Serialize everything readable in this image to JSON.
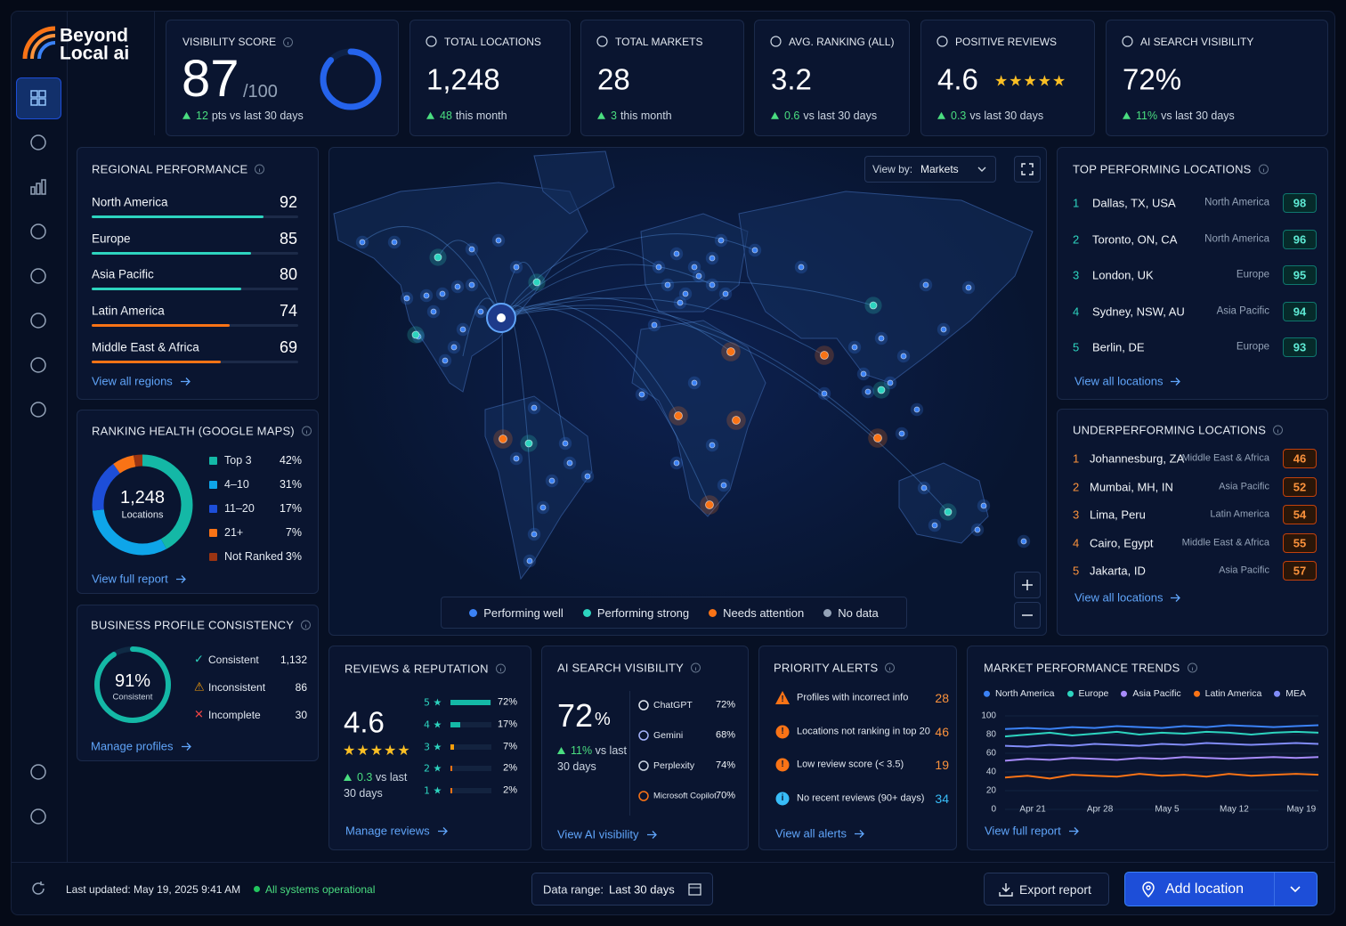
{
  "brand": {
    "line1": "Beyond",
    "line2": "Local ai"
  },
  "kpis": [
    {
      "title": "VISIBILITY SCORE",
      "value": 87,
      "unit": "/100",
      "delta": "12",
      "note": "pts vs last 30 days"
    },
    {
      "title": "TOTAL LOCATIONS",
      "value": "1,248",
      "delta": "48",
      "note": "this month"
    },
    {
      "title": "TOTAL MARKETS",
      "value": "28",
      "delta": "3",
      "note": "this month"
    },
    {
      "title": "AVG. RANKING (ALL)",
      "value": "3.2",
      "delta": "0.6",
      "note": "vs last 30 days"
    },
    {
      "title": "POSITIVE REVIEWS",
      "value": "4.6",
      "stars": "★★★★★",
      "delta": "0.3",
      "note": "vs last 30 days"
    },
    {
      "title": "AI SEARCH VISIBILITY",
      "value": "72%",
      "delta": "11%",
      "note": "vs last 30 days"
    }
  ],
  "regional": {
    "title": "REGIONAL PERFORMANCE",
    "items": [
      {
        "name": "North America",
        "score": 92,
        "color": "#2dd4bf"
      },
      {
        "name": "Europe",
        "score": 85,
        "color": "#2dd4bf"
      },
      {
        "name": "Asia Pacific",
        "score": 80,
        "color": "#2dd4bf"
      },
      {
        "name": "Latin America",
        "score": 74,
        "color": "#f97316"
      },
      {
        "name": "Middle East & Africa",
        "score": 69,
        "color": "#f97316"
      }
    ],
    "link": "View all regions"
  },
  "ranking": {
    "title": "RANKING HEALTH (GOOGLE MAPS)",
    "total": "1,248",
    "total_label": "Locations",
    "items": [
      {
        "label": "Top 3",
        "value": 42,
        "value_label": "42%",
        "color": "#14b8a6"
      },
      {
        "label": "4–10",
        "value": 31,
        "value_label": "31%",
        "color": "#0ea5e9"
      },
      {
        "label": "11–20",
        "value": 17,
        "value_label": "17%",
        "color": "#1d4ed8"
      },
      {
        "label": "21+",
        "value": 7,
        "value_label": "7%",
        "color": "#f97316"
      },
      {
        "label": "Not Ranked",
        "value": 3,
        "value_label": "3%",
        "color": "#9a3412"
      }
    ],
    "link": "View full report"
  },
  "consistency": {
    "title": "BUSINESS PROFILE CONSISTENCY",
    "score": 91,
    "score_label": "91%",
    "score_caption": "Consistent",
    "items": [
      {
        "icon": "✓",
        "label": "Consistent",
        "count": "1,132",
        "color": "#2dd4bf"
      },
      {
        "icon": "⚠",
        "label": "Inconsistent",
        "count": "86",
        "color": "#f59e0b"
      },
      {
        "icon": "✕",
        "label": "Incomplete",
        "count": "30",
        "color": "#ef4444"
      }
    ],
    "link": "Manage profiles"
  },
  "map": {
    "view_by_label": "View by:",
    "view_by": "Markets",
    "legend": [
      {
        "label": "Performing well",
        "color": "#3b82f6"
      },
      {
        "label": "Performing strong",
        "color": "#2dd4bf"
      },
      {
        "label": "Needs attention",
        "color": "#f97316"
      },
      {
        "label": "No data",
        "color": "#94a3b8"
      }
    ]
  },
  "top": {
    "title": "TOP PERFORMING LOCATIONS",
    "rows": [
      {
        "rank": "1",
        "name": "Dallas, TX, USA",
        "region": "North America",
        "score": "98"
      },
      {
        "rank": "2",
        "name": "Toronto, ON, CA",
        "region": "North America",
        "score": "96"
      },
      {
        "rank": "3",
        "name": "London, UK",
        "region": "Europe",
        "score": "95"
      },
      {
        "rank": "4",
        "name": "Sydney, NSW, AU",
        "region": "Asia Pacific",
        "score": "94"
      },
      {
        "rank": "5",
        "name": "Berlin, DE",
        "region": "Europe",
        "score": "93"
      }
    ],
    "link": "View all locations"
  },
  "under": {
    "title": "UNDERPERFORMING LOCATIONS",
    "rows": [
      {
        "rank": "1",
        "name": "Johannesburg, ZA",
        "region": "Middle East & Africa",
        "score": "46"
      },
      {
        "rank": "2",
        "name": "Mumbai, MH, IN",
        "region": "Asia Pacific",
        "score": "52"
      },
      {
        "rank": "3",
        "name": "Lima, Peru",
        "region": "Latin America",
        "score": "54"
      },
      {
        "rank": "4",
        "name": "Cairo, Egypt",
        "region": "Middle East & Africa",
        "score": "55"
      },
      {
        "rank": "5",
        "name": "Jakarta, ID",
        "region": "Asia Pacific",
        "score": "57"
      }
    ],
    "link": "View all locations"
  },
  "reviews": {
    "title": "REVIEWS & REPUTATION",
    "rating": "4.6",
    "stars": "★★★★★",
    "delta": "0.3",
    "note": "vs last 30 days",
    "dist": [
      {
        "label": "5 ★",
        "value": 72,
        "value_label": "72%"
      },
      {
        "label": "4 ★",
        "value": 17,
        "value_label": "17%"
      },
      {
        "label": "3 ★",
        "value": 7,
        "value_label": "7%"
      },
      {
        "label": "2 ★",
        "value": 2,
        "value_label": "2%"
      },
      {
        "label": "1 ★",
        "value": 2,
        "value_label": "2%"
      }
    ],
    "link": "Manage reviews"
  },
  "ai": {
    "title": "AI SEARCH VISIBILITY",
    "value": "72",
    "unit": "%",
    "delta": "11%",
    "note": "vs last 30 days",
    "engines": [
      {
        "name": "ChatGPT",
        "value": "72%"
      },
      {
        "name": "Gemini",
        "value": "68%"
      },
      {
        "name": "Perplexity",
        "value": "74%"
      },
      {
        "name": "Microsoft Copilot",
        "value": "70%"
      }
    ],
    "link": "View AI visibility"
  },
  "alerts": {
    "title": "PRIORITY ALERTS",
    "items": [
      {
        "icon": "!",
        "text": "Profiles with incorrect info",
        "count": "28",
        "color": "#f97316"
      },
      {
        "icon": "!",
        "text": "Locations not ranking in top 20",
        "count": "46",
        "color": "#f97316"
      },
      {
        "icon": "!",
        "text": "Low review score (< 3.5)",
        "count": "19",
        "color": "#f97316"
      },
      {
        "icon": "i",
        "text": "No recent reviews (90+ days)",
        "count": "34",
        "color": "#38bdf8"
      }
    ],
    "link": "View all alerts"
  },
  "trends": {
    "type": "line",
    "title": "MARKET PERFORMANCE TRENDS",
    "x": [
      null,
      "Apr 21",
      null,
      null,
      "Apr 28",
      null,
      null,
      "May 5",
      null,
      null,
      "May 12",
      null,
      null,
      "May 19",
      null
    ],
    "ylim": [
      0,
      100
    ],
    "yticks": [
      0,
      20,
      40,
      60,
      80,
      100
    ],
    "series": [
      {
        "name": "North America",
        "color": "#3b82f6",
        "values": [
          86,
          87,
          86,
          88,
          87,
          89,
          88,
          87,
          89,
          88,
          90,
          89,
          88,
          89,
          90
        ]
      },
      {
        "name": "Europe",
        "color": "#2dd4bf",
        "values": [
          78,
          80,
          82,
          79,
          81,
          83,
          80,
          82,
          81,
          83,
          82,
          80,
          82,
          83,
          82
        ]
      },
      {
        "name": "Asia Pacific",
        "color": "#a78bfa",
        "values": [
          52,
          54,
          53,
          55,
          54,
          53,
          55,
          54,
          56,
          55,
          54,
          55,
          56,
          55,
          56
        ]
      },
      {
        "name": "Latin America",
        "color": "#f97316",
        "values": [
          34,
          36,
          33,
          37,
          36,
          35,
          38,
          36,
          37,
          35,
          38,
          36,
          37,
          38,
          37
        ]
      },
      {
        "name": "MEA",
        "color": "#818cf8",
        "values": [
          68,
          67,
          69,
          68,
          70,
          69,
          68,
          70,
          69,
          71,
          70,
          69,
          70,
          71,
          70
        ]
      }
    ],
    "link": "View full report"
  },
  "footer": {
    "updated": "Last updated: May 19, 2025 9:41 AM",
    "status": "All systems operational",
    "range_label": "Data range:",
    "range": "Last 30 days",
    "export": "Export report",
    "add": "Add location"
  }
}
